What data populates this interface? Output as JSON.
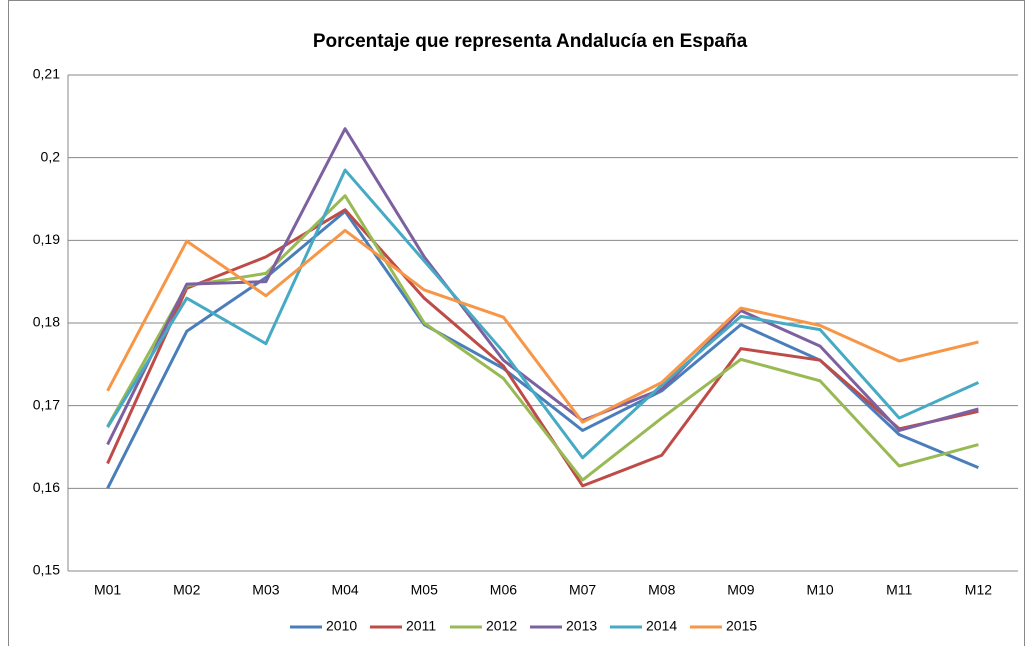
{
  "chart_data": {
    "type": "line",
    "title": "Porcentaje que representa Andalucía en España",
    "categories": [
      "M01",
      "M02",
      "M03",
      "M04",
      "M05",
      "M06",
      "M07",
      "M08",
      "M09",
      "M10",
      "M11",
      "M12"
    ],
    "series": [
      {
        "name": "2010",
        "color": "#4a7ebb",
        "values": [
          0.16,
          0.179,
          0.1855,
          0.1935,
          0.1798,
          0.1745,
          0.167,
          0.1718,
          0.1798,
          0.1755,
          0.1665,
          0.1625
        ]
      },
      {
        "name": "2011",
        "color": "#be4b48",
        "values": [
          0.163,
          0.1842,
          0.188,
          0.1937,
          0.183,
          0.1748,
          0.1603,
          0.164,
          0.1769,
          0.1755,
          0.1672,
          0.1693
        ]
      },
      {
        "name": "2012",
        "color": "#98b954",
        "values": [
          0.1675,
          0.1845,
          0.186,
          0.1954,
          0.18,
          0.1733,
          0.161,
          0.1685,
          0.1756,
          0.173,
          0.1627,
          0.1653
        ]
      },
      {
        "name": "2013",
        "color": "#7d60a0",
        "values": [
          0.1653,
          0.1847,
          0.185,
          0.2035,
          0.188,
          0.1755,
          0.1682,
          0.172,
          0.1815,
          0.1772,
          0.167,
          0.1696
        ]
      },
      {
        "name": "2014",
        "color": "#46aac5",
        "values": [
          0.1674,
          0.183,
          0.1775,
          0.1985,
          0.1875,
          0.1765,
          0.1637,
          0.1725,
          0.1808,
          0.1792,
          0.1685,
          0.1728
        ]
      },
      {
        "name": "2015",
        "color": "#f79646",
        "values": [
          0.1718,
          0.1899,
          0.1833,
          0.1912,
          0.184,
          0.1807,
          0.168,
          0.1728,
          0.1818,
          0.1797,
          0.1754,
          0.1777
        ]
      }
    ],
    "ylim": [
      0.15,
      0.21
    ],
    "yticks": [
      {
        "value": 0.15,
        "label": "0,15"
      },
      {
        "value": 0.16,
        "label": "0,16"
      },
      {
        "value": 0.17,
        "label": "0,17"
      },
      {
        "value": 0.18,
        "label": "0,18"
      },
      {
        "value": 0.19,
        "label": "0,19"
      },
      {
        "value": 0.2,
        "label": "0,2"
      },
      {
        "value": 0.21,
        "label": "0,21"
      }
    ],
    "grid": true,
    "legend": "bottom"
  }
}
